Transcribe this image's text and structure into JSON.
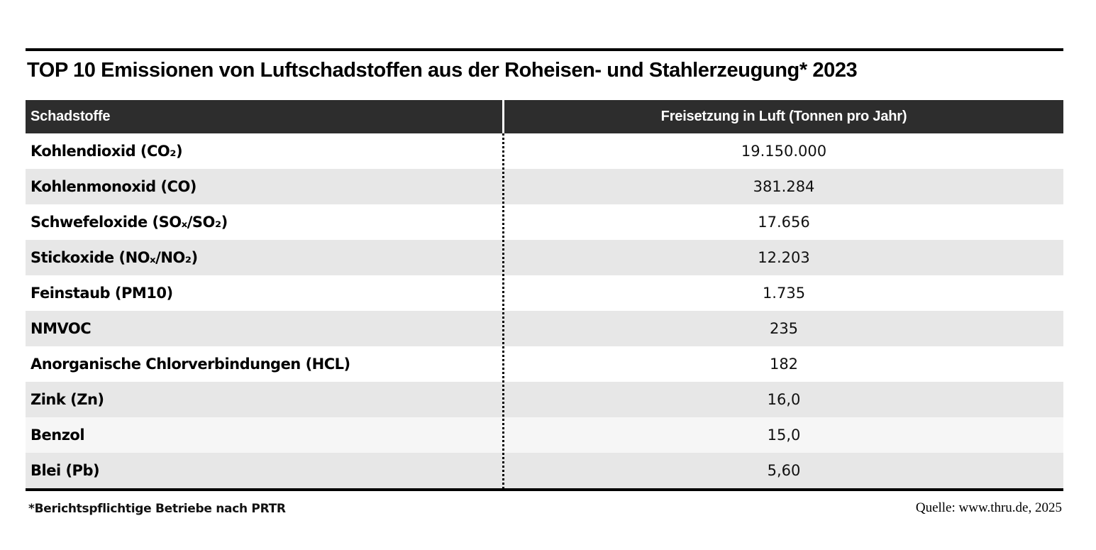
{
  "title": "TOP 10 Emissionen von Luftschadstoffen aus der Roheisen- und Stahlerzeugung* 2023",
  "table": {
    "columns": [
      "Schadstoffe",
      "Freisetzung in Luft (Tonnen pro Jahr)"
    ],
    "rows": [
      {
        "label": "Kohlendioxid (CO₂)",
        "value": "19.150.000"
      },
      {
        "label": "Kohlenmonoxid (CO)",
        "value": "381.284"
      },
      {
        "label": "Schwefeloxide (SOₓ/SO₂)",
        "value": "17.656"
      },
      {
        "label": "Stickoxide (NOₓ/NO₂)",
        "value": "12.203"
      },
      {
        "label": "Feinstaub (PM10)",
        "value": "1.735"
      },
      {
        "label": "NMVOC",
        "value": "235"
      },
      {
        "label": "Anorganische Chlorverbindungen (HCL)",
        "value": "182"
      },
      {
        "label": "Zink (Zn)",
        "value": "16,0"
      },
      {
        "label": "Benzol",
        "value": "15,0"
      },
      {
        "label": "Blei (Pb)",
        "value": "5,60"
      }
    ]
  },
  "footnote": "*Berichtspflichtige Betriebe nach PRTR",
  "source": "Quelle: www.thru.de, 2025",
  "colors": {
    "header_bg": "#2d2d2d",
    "row_stripe": "#e7e7e7",
    "row_light": "#f6f6f6",
    "rule": "#000000",
    "background": "#ffffff"
  },
  "chart_data": {
    "type": "table",
    "title": "TOP 10 Emissionen von Luftschadstoffen aus der Roheisen- und Stahlerzeugung* 2023",
    "columns": [
      "Schadstoffe",
      "Freisetzung in Luft (Tonnen pro Jahr)"
    ],
    "categories": [
      "Kohlendioxid (CO₂)",
      "Kohlenmonoxid (CO)",
      "Schwefeloxide (SOₓ/SO₂)",
      "Stickoxide (NOₓ/NO₂)",
      "Feinstaub (PM10)",
      "NMVOC",
      "Anorganische Chlorverbindungen (HCL)",
      "Zink (Zn)",
      "Benzol",
      "Blei (Pb)"
    ],
    "values_display": [
      "19.150.000",
      "381.284",
      "17.656",
      "12.203",
      "1.735",
      "235",
      "182",
      "16,0",
      "15,0",
      "5,60"
    ],
    "values": [
      19150000,
      381284,
      17656,
      12203,
      1735,
      235,
      182,
      16.0,
      15.0,
      5.6
    ],
    "unit": "Tonnen pro Jahr",
    "year": "2023",
    "footnote": "*Berichtspflichtige Betriebe nach PRTR",
    "source": "Quelle: www.thru.de, 2025"
  }
}
